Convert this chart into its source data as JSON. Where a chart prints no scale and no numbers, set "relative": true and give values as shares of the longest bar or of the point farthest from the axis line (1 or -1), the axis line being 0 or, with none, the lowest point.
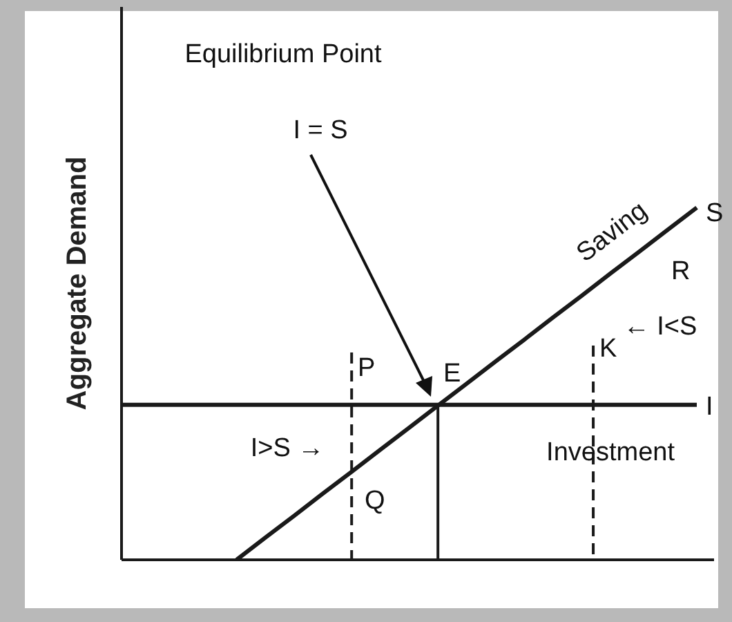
{
  "chart_data": {
    "type": "line",
    "relative": true,
    "ylabel": "Aggregate Demand",
    "categories": [
      null,
      null,
      null,
      null,
      null,
      null,
      null,
      null,
      null,
      null,
      null,
      null,
      null,
      null,
      null,
      null,
      null,
      null,
      null,
      null,
      null
    ],
    "series": [
      {
        "name": "Saving",
        "color": "#1a1a1a",
        "values": [
          null,
          null,
          null,
          null,
          0,
          0.063,
          0.125,
          0.188,
          0.25,
          0.313,
          0.375,
          0.438,
          0.5,
          0.563,
          0.625,
          0.688,
          0.75,
          0.813,
          0.875,
          0.938,
          1
        ]
      },
      {
        "name": "Investment",
        "color": "#1a1a1a",
        "values": [
          0.44,
          0.44,
          0.44,
          0.44,
          0.44,
          0.44,
          0.44,
          0.44,
          0.44,
          0.44,
          0.44,
          0.44,
          0.44,
          0.44,
          0.44,
          0.44,
          0.44,
          0.44,
          0.44,
          0.44,
          0.44
        ]
      }
    ],
    "annotations": [
      "Equilibrium Point",
      "I = S",
      "I>S →",
      "← I<S",
      "E",
      "P",
      "Q",
      "K",
      "R",
      "S",
      "I"
    ]
  }
}
